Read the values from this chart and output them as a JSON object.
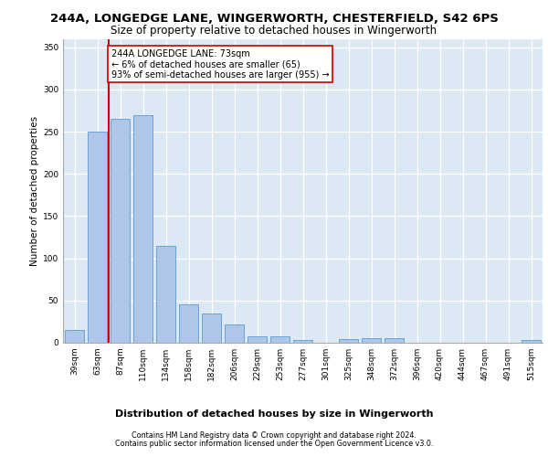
{
  "title1": "244A, LONGEDGE LANE, WINGERWORTH, CHESTERFIELD, S42 6PS",
  "title2": "Size of property relative to detached houses in Wingerworth",
  "xlabel": "Distribution of detached houses by size in Wingerworth",
  "ylabel": "Number of detached properties",
  "categories": [
    "39sqm",
    "63sqm",
    "87sqm",
    "110sqm",
    "134sqm",
    "158sqm",
    "182sqm",
    "206sqm",
    "229sqm",
    "253sqm",
    "277sqm",
    "301sqm",
    "325sqm",
    "348sqm",
    "372sqm",
    "396sqm",
    "420sqm",
    "444sqm",
    "467sqm",
    "491sqm",
    "515sqm"
  ],
  "values": [
    15,
    250,
    265,
    270,
    115,
    45,
    35,
    22,
    8,
    8,
    3,
    0,
    4,
    5,
    5,
    0,
    0,
    0,
    0,
    0,
    3
  ],
  "bar_color": "#aec6e8",
  "bar_edge_color": "#5b9bd5",
  "vline_x": 1.5,
  "vline_color": "#cc0000",
  "annotation_text": "244A LONGEDGE LANE: 73sqm\n← 6% of detached houses are smaller (65)\n93% of semi-detached houses are larger (955) →",
  "annotation_box_color": "#ffffff",
  "annotation_box_edge": "#cc0000",
  "ylim": [
    0,
    360
  ],
  "yticks": [
    0,
    50,
    100,
    150,
    200,
    250,
    300,
    350
  ],
  "bg_color": "#dde8f5",
  "footer1": "Contains HM Land Registry data © Crown copyright and database right 2024.",
  "footer2": "Contains public sector information licensed under the Open Government Licence v3.0.",
  "title1_fontsize": 9.5,
  "title2_fontsize": 8.5,
  "xlabel_fontsize": 8,
  "ylabel_fontsize": 7.5,
  "tick_fontsize": 6.5,
  "footer_fontsize": 5.8,
  "annotation_fontsize": 7
}
